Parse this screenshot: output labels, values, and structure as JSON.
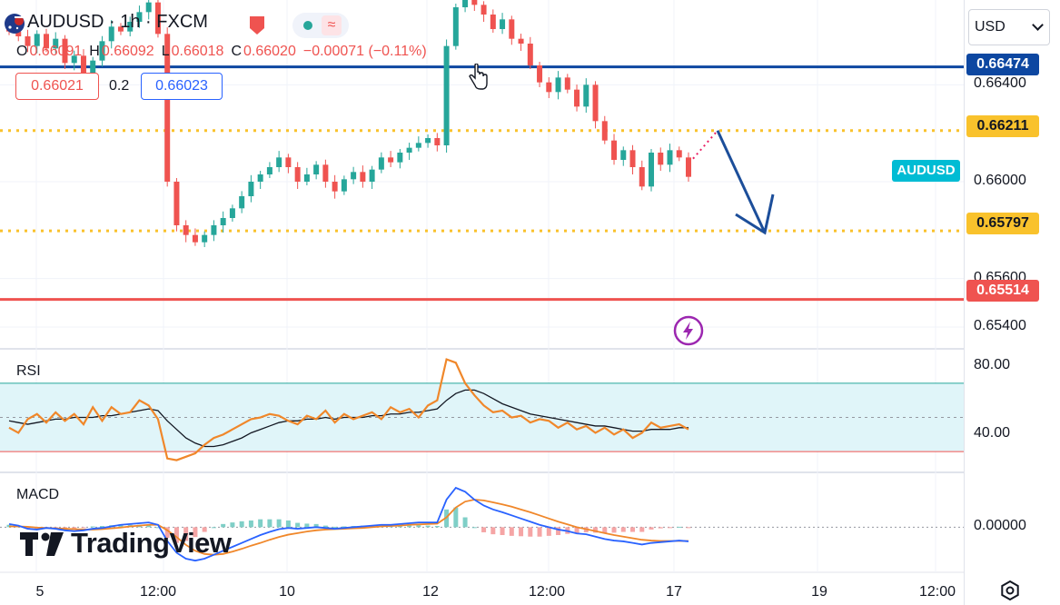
{
  "symbol": {
    "ticker": "AUDUSD",
    "sep1": " · ",
    "timeframe": "1h",
    "sep2": " · ",
    "exchange": "FXCM"
  },
  "ohlc": {
    "o_label": "O",
    "o_value": "0.66091",
    "h_label": "H",
    "h_value": "0.66092",
    "l_label": "L",
    "l_value": "0.66018",
    "c_label": "C",
    "c_value": "0.66020",
    "change": "−0.00071 (−0.11%)"
  },
  "order": {
    "sell": "0.66021",
    "spread": "0.2",
    "buy": "0.66023"
  },
  "currency_select": {
    "value": "USD"
  },
  "price_axis": {
    "ticks": [
      "0.66400",
      "0.66000",
      "0.65600",
      "0.65400"
    ]
  },
  "levels": [
    {
      "name": "resistance-blue",
      "value": "0.66474",
      "color": "#0d47a1"
    },
    {
      "name": "dotted-upper",
      "value": "0.66211",
      "color": "#f9c22c"
    },
    {
      "name": "dotted-lower",
      "value": "0.65797",
      "color": "#f9c22c"
    },
    {
      "name": "support-red",
      "value": "0.65514",
      "color": "#ef5350"
    }
  ],
  "symbol_tag": "AUDUSD",
  "rsi": {
    "label": "RSI",
    "ticks": [
      "80.00",
      "40.00"
    ]
  },
  "macd": {
    "label": "MACD",
    "ticks": [
      "0.00000"
    ]
  },
  "time_axis": {
    "ticks": [
      "5",
      "12:00",
      "10",
      "12",
      "12:00",
      "17",
      "19",
      "12:00"
    ]
  },
  "brand": {
    "name": "TradingView"
  },
  "colors": {
    "up": "#26a69a",
    "down": "#ef5350",
    "rsi": "#f0872a",
    "macd": "#2962ff",
    "signal": "#f0872a",
    "arrow": "#1c4e9a"
  },
  "chart_data": [
    {
      "type": "candlestick",
      "title": "AUDUSD · 1h · FXCM",
      "x_ticks": [
        "5",
        "12:00",
        "10",
        "12",
        "12:00",
        "17",
        "19",
        "12:00"
      ],
      "y_ticks": [
        0.664,
        0.66,
        0.656,
        0.654
      ],
      "ylim": [
        0.6531,
        0.6675
      ],
      "horizontal_levels": [
        0.66474,
        0.66211,
        0.65797,
        0.65514
      ],
      "last_close": 0.6602,
      "close_path": [
        0.6662,
        0.666,
        0.6656,
        0.6661,
        0.6655,
        0.6659,
        0.6649,
        0.6652,
        0.6645,
        0.665,
        0.6658,
        0.6664,
        0.6662,
        0.6666,
        0.667,
        0.6674,
        0.6661,
        0.66,
        0.6582,
        0.6578,
        0.6575,
        0.6578,
        0.6582,
        0.6585,
        0.6589,
        0.6594,
        0.66,
        0.6603,
        0.6606,
        0.661,
        0.6606,
        0.66,
        0.6603,
        0.6607,
        0.66,
        0.6596,
        0.6601,
        0.6604,
        0.66,
        0.6605,
        0.661,
        0.6608,
        0.6612,
        0.6614,
        0.6616,
        0.6618,
        0.6615,
        0.6656,
        0.6672,
        0.668,
        0.6673,
        0.6669,
        0.6663,
        0.6667,
        0.6659,
        0.6657,
        0.6648,
        0.6641,
        0.6637,
        0.6643,
        0.6638,
        0.6631,
        0.664,
        0.6625,
        0.6617,
        0.6609,
        0.6613,
        0.6606,
        0.6598,
        0.6612,
        0.6607,
        0.6613,
        0.661,
        0.6602
      ]
    },
    {
      "type": "line",
      "title": "RSI",
      "ylim": [
        20,
        88
      ],
      "y_ticks": [
        80,
        40
      ],
      "band": [
        30,
        70
      ],
      "series": [
        {
          "name": "RSI",
          "values": [
            44,
            41,
            49,
            52,
            47,
            53,
            48,
            52,
            46,
            56,
            48,
            56,
            52,
            53,
            60,
            57,
            49,
            26,
            25,
            27,
            29,
            34,
            38,
            40,
            43,
            46,
            49,
            50,
            52,
            51,
            48,
            46,
            51,
            49,
            54,
            47,
            52,
            49,
            51,
            53,
            49,
            56,
            53,
            55,
            50,
            57,
            60,
            84,
            82,
            70,
            63,
            57,
            53,
            54,
            50,
            51,
            47,
            49,
            48,
            44,
            47,
            43,
            45,
            41,
            44,
            40,
            43,
            38,
            41,
            47,
            44,
            45,
            46,
            43
          ]
        },
        {
          "values": [
            48,
            47,
            46,
            47,
            48,
            49,
            49,
            50,
            50,
            50,
            51,
            51,
            52,
            53,
            54,
            55,
            54,
            48,
            43,
            38,
            35,
            33,
            33,
            34,
            36,
            38,
            41,
            43,
            45,
            47,
            48,
            48,
            49,
            49,
            50,
            49,
            50,
            50,
            50,
            51,
            51,
            52,
            52,
            53,
            53,
            54,
            55,
            60,
            64,
            66,
            66,
            64,
            61,
            58,
            56,
            54,
            52,
            51,
            50,
            49,
            48,
            47,
            46,
            45,
            45,
            44,
            43,
            42,
            42,
            43,
            43,
            43,
            44,
            44
          ]
        }
      ]
    },
    {
      "type": "line",
      "title": "MACD",
      "ylim": [
        -0.0011,
        0.0013
      ],
      "y_ticks": [
        0
      ],
      "series": [
        {
          "name": "MACD",
          "values": [
            8e-05,
            4e-05,
            -4e-05,
            -6e-05,
            -2e-05,
            -4e-05,
            -8e-05,
            -0.0001,
            -8e-05,
            -4e-05,
            -2e-05,
            2e-05,
            6e-05,
            8e-05,
            0.0001,
            0.00012,
            6e-05,
            -0.00035,
            -0.00065,
            -0.0008,
            -0.00085,
            -0.0008,
            -0.0007,
            -0.0006,
            -0.0005,
            -0.0004,
            -0.0003,
            -0.0002,
            -0.00012,
            -5e-05,
            -2e-05,
            -4e-05,
            -2e-05,
            0.0,
            -2e-05,
            -4e-05,
            -2e-05,
            0.0,
            2e-05,
            4e-05,
            6e-05,
            6e-05,
            8e-05,
            0.0001,
            0.00012,
            0.00012,
            0.00012,
            0.0007,
            0.001,
            0.0009,
            0.0007,
            0.00055,
            0.00045,
            0.00038,
            0.0003,
            0.00022,
            0.00014,
            6e-05,
            0.0,
            -6e-05,
            -0.0001,
            -0.00016,
            -0.00018,
            -0.00024,
            -0.0003,
            -0.00034,
            -0.00036,
            -0.0004,
            -0.00044,
            -0.0004,
            -0.00038,
            -0.00036,
            -0.00034,
            -0.00036
          ]
        },
        {
          "values": [
            2e-05,
            2e-05,
            1e-05,
            -1e-05,
            -2e-05,
            -3e-05,
            -4e-05,
            -5e-05,
            -6e-05,
            -6e-05,
            -5e-05,
            -3e-05,
            -1e-05,
            2e-05,
            4e-05,
            6e-05,
            6e-05,
            -8e-05,
            -0.00025,
            -0.00045,
            -0.0006,
            -0.00068,
            -0.0007,
            -0.00068,
            -0.00062,
            -0.00055,
            -0.00047,
            -0.0004,
            -0.00032,
            -0.00025,
            -0.00019,
            -0.00015,
            -0.00011,
            -8e-05,
            -6e-05,
            -5e-05,
            -4e-05,
            -3e-05,
            -2e-05,
            0.0,
            2e-05,
            3e-05,
            4e-05,
            6e-05,
            7e-05,
            8e-05,
            9e-05,
            0.00025,
            0.0005,
            0.00065,
            0.0007,
            0.00068,
            0.00063,
            0.00058,
            0.00052,
            0.00045,
            0.00038,
            0.0003,
            0.00022,
            0.00014,
            7e-05,
            0.0,
            -5e-05,
            -0.0001,
            -0.00015,
            -0.0002,
            -0.00024,
            -0.00028,
            -0.00032,
            -0.00034,
            -0.00035,
            -0.00035,
            -0.00035,
            -0.00035
          ]
        }
      ]
    }
  ]
}
